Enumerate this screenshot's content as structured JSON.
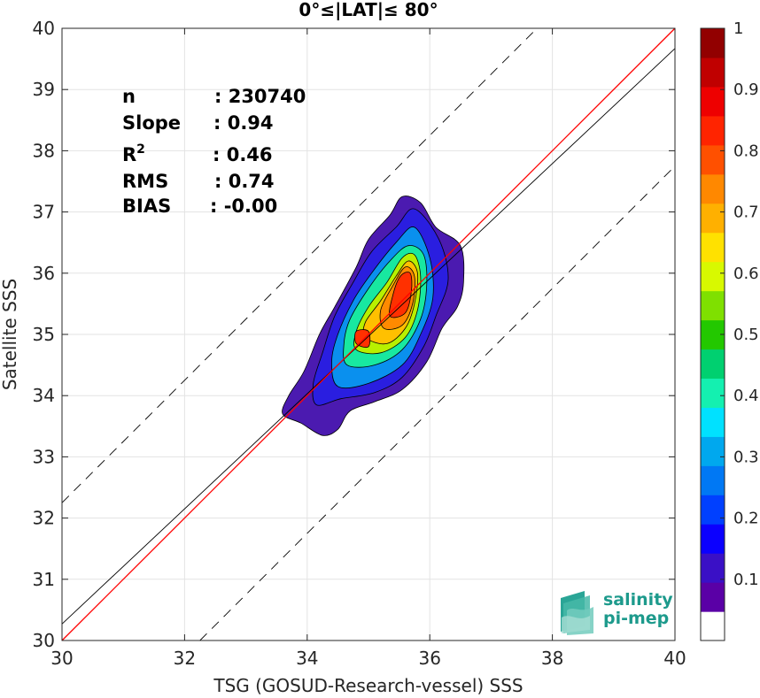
{
  "chart_data": {
    "type": "heatmap",
    "title": "0°≤|LAT|≤ 80°",
    "xlabel": "TSG (GOSUD-Research-vessel) SSS",
    "ylabel": "Satellite SSS",
    "xlim": [
      30,
      40
    ],
    "ylim": [
      30,
      40
    ],
    "xticks": [
      "30",
      "32",
      "34",
      "36",
      "38",
      "40"
    ],
    "yticks": [
      "30",
      "31",
      "32",
      "33",
      "34",
      "35",
      "36",
      "37",
      "38",
      "39",
      "40"
    ],
    "grid": true,
    "colorbar": {
      "range": [
        0,
        1
      ],
      "ticks": [
        "0.1",
        "0.2",
        "0.3",
        "0.4",
        "0.5",
        "0.6",
        "0.7",
        "0.8",
        "0.9",
        "1"
      ],
      "colors": [
        "#ffffff",
        "#5a00a6",
        "#3a10c6",
        "#0b00ff",
        "#0040ff",
        "#0078f4",
        "#00a8ee",
        "#00e1ff",
        "#14f0b0",
        "#00d070",
        "#23c800",
        "#7fe000",
        "#d8f900",
        "#ffe100",
        "#ffb000",
        "#ff8800",
        "#ff5000",
        "#ff2400",
        "#ee0000",
        "#c00000",
        "#920000"
      ]
    },
    "stats": [
      {
        "label": "n",
        "value": ": 230740"
      },
      {
        "label": "Slope",
        "value": ": 0.94"
      },
      {
        "label": "R",
        "sup": "2",
        "value": ": 0.46"
      },
      {
        "label": "RMS",
        "value": ": 0.74"
      },
      {
        "label": "BIAS",
        "value": ": -0.00"
      }
    ],
    "lines": {
      "one_to_one": {
        "slope": 1.0,
        "intercept": 0.0,
        "color": "#ff0000"
      },
      "regression": {
        "slope": 0.94,
        "intercept": 2.07,
        "color": "#000000"
      },
      "bounds": [
        {
          "slope": 1.0,
          "intercept": 2.25,
          "style": "dashed"
        },
        {
          "slope": 1.0,
          "intercept": -2.25,
          "style": "dashed"
        }
      ]
    },
    "contours": [
      {
        "level": 0.05,
        "color": "#4b1ab0",
        "points": [
          [
            33.6,
            33.7
          ],
          [
            33.9,
            33.55
          ],
          [
            34.25,
            33.35
          ],
          [
            34.5,
            33.45
          ],
          [
            34.7,
            33.75
          ],
          [
            35.1,
            33.9
          ],
          [
            35.55,
            34.1
          ],
          [
            35.95,
            34.55
          ],
          [
            36.2,
            35.1
          ],
          [
            36.45,
            35.45
          ],
          [
            36.55,
            35.85
          ],
          [
            36.5,
            36.45
          ],
          [
            36.1,
            36.75
          ],
          [
            35.85,
            37.15
          ],
          [
            35.55,
            37.25
          ],
          [
            35.35,
            36.95
          ],
          [
            35.0,
            36.55
          ],
          [
            34.8,
            36.1
          ],
          [
            34.45,
            35.45
          ],
          [
            34.2,
            35.0
          ],
          [
            33.95,
            34.4
          ],
          [
            33.7,
            34.0
          ]
        ]
      },
      {
        "level": 0.15,
        "color": "#2a1ee0",
        "points": [
          [
            34.15,
            33.85
          ],
          [
            34.55,
            33.95
          ],
          [
            35.1,
            34.05
          ],
          [
            35.55,
            34.3
          ],
          [
            35.9,
            34.8
          ],
          [
            36.1,
            35.3
          ],
          [
            36.3,
            35.9
          ],
          [
            36.15,
            36.55
          ],
          [
            35.75,
            37.05
          ],
          [
            35.45,
            36.75
          ],
          [
            35.05,
            36.35
          ],
          [
            34.75,
            35.85
          ],
          [
            34.45,
            35.3
          ],
          [
            34.25,
            34.7
          ],
          [
            34.1,
            34.2
          ]
        ]
      },
      {
        "level": 0.3,
        "color": "#0a90ee",
        "points": [
          [
            34.5,
            34.15
          ],
          [
            35.0,
            34.2
          ],
          [
            35.55,
            34.5
          ],
          [
            35.85,
            35.0
          ],
          [
            36.05,
            35.6
          ],
          [
            36.0,
            36.25
          ],
          [
            35.75,
            36.75
          ],
          [
            35.45,
            36.5
          ],
          [
            35.05,
            36.0
          ],
          [
            34.75,
            35.55
          ],
          [
            34.5,
            35.0
          ],
          [
            34.4,
            34.55
          ]
        ]
      },
      {
        "level": 0.45,
        "color": "#18e8a0",
        "points": [
          [
            34.65,
            34.5
          ],
          [
            35.1,
            34.5
          ],
          [
            35.55,
            34.75
          ],
          [
            35.85,
            35.25
          ],
          [
            35.95,
            35.8
          ],
          [
            35.9,
            36.3
          ],
          [
            35.65,
            36.45
          ],
          [
            35.35,
            36.2
          ],
          [
            35.0,
            35.75
          ],
          [
            34.7,
            35.25
          ],
          [
            34.6,
            34.85
          ]
        ]
      },
      {
        "level": 0.55,
        "color": "#b8f000",
        "points": [
          [
            34.8,
            34.75
          ],
          [
            35.2,
            34.7
          ],
          [
            35.6,
            34.95
          ],
          [
            35.8,
            35.4
          ],
          [
            35.85,
            35.95
          ],
          [
            35.75,
            36.3
          ],
          [
            35.55,
            36.25
          ],
          [
            35.3,
            35.85
          ],
          [
            35.0,
            35.45
          ],
          [
            34.8,
            35.05
          ]
        ]
      },
      {
        "level": 0.65,
        "color": "#ffc000",
        "points": [
          [
            34.95,
            34.95
          ],
          [
            35.3,
            34.85
          ],
          [
            35.6,
            35.1
          ],
          [
            35.75,
            35.5
          ],
          [
            35.8,
            36.0
          ],
          [
            35.65,
            36.2
          ],
          [
            35.45,
            35.95
          ],
          [
            35.2,
            35.55
          ],
          [
            34.95,
            35.2
          ]
        ]
      },
      {
        "level": 0.75,
        "color": "#ff8a00",
        "points": [
          [
            35.25,
            35.1
          ],
          [
            35.55,
            35.15
          ],
          [
            35.72,
            35.5
          ],
          [
            35.75,
            35.95
          ],
          [
            35.6,
            36.1
          ],
          [
            35.4,
            35.8
          ],
          [
            35.2,
            35.4
          ]
        ]
      },
      {
        "level": 0.85,
        "color": "#ff3000",
        "points": [
          [
            35.35,
            35.3
          ],
          [
            35.6,
            35.35
          ],
          [
            35.7,
            35.7
          ],
          [
            35.68,
            36.0
          ],
          [
            35.52,
            35.95
          ],
          [
            35.4,
            35.65
          ]
        ]
      },
      {
        "level": 0.85,
        "color": "#ff3000",
        "points": [
          [
            34.8,
            34.85
          ],
          [
            35.0,
            34.8
          ],
          [
            35.0,
            35.05
          ],
          [
            34.8,
            35.05
          ]
        ]
      }
    ]
  }
}
